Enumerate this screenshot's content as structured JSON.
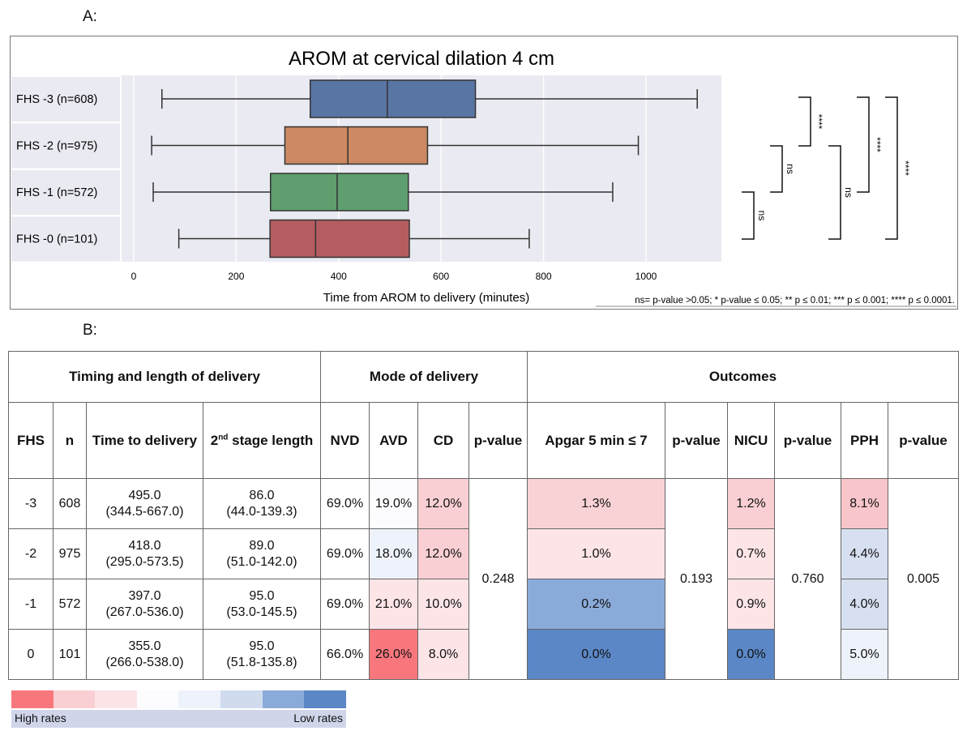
{
  "panel_a_label": "A:",
  "panel_b_label": "B:",
  "chart_data": {
    "type": "boxplot",
    "title": "AROM at cervical dilation 4 cm",
    "xlabel": "Time from AROM to delivery (minutes)",
    "xlim": [
      -10,
      1110
    ],
    "xticks": [
      "0",
      "200",
      "400",
      "600",
      "800",
      "1000"
    ],
    "grid": true,
    "categories": [
      "FHS -3 (n=608)",
      "FHS -2 (n=975)",
      "FHS -1 (n=572)",
      "FHS -0 (n=101)"
    ],
    "colors": [
      "#5975a4",
      "#cc8963",
      "#5f9e6e",
      "#b55d60"
    ],
    "boxes": [
      {
        "whislo": 55,
        "q1": 344.5,
        "med": 495,
        "q3": 667,
        "whishi": 1100
      },
      {
        "whislo": 35,
        "q1": 295,
        "med": 418,
        "q3": 573.5,
        "whishi": 985
      },
      {
        "whislo": 38,
        "q1": 267,
        "med": 397,
        "q3": 536,
        "whishi": 935
      },
      {
        "whislo": 88,
        "q1": 266,
        "med": 355,
        "q3": 538,
        "whishi": 772
      }
    ],
    "significance": [
      {
        "pair": [
          3,
          2
        ],
        "label": "ns"
      },
      {
        "pair": [
          2,
          1
        ],
        "label": "ns"
      },
      {
        "pair": [
          1,
          0
        ],
        "label": "****"
      },
      {
        "pair": [
          3,
          1
        ],
        "label": "ns"
      },
      {
        "pair": [
          2,
          0
        ],
        "label": "****"
      },
      {
        "pair": [
          3,
          0
        ],
        "label": "****"
      }
    ],
    "footnote": "ns= p-value >0.05; * p-value ≤ 0.05; ** p ≤ 0.01; *** p ≤ 0.001; **** p ≤ 0.0001."
  },
  "table": {
    "groups": [
      "Timing and length of delivery",
      "Mode of delivery",
      "Outcomes"
    ],
    "headers": {
      "fhs": "FHS",
      "n": "n",
      "time": "Time to delivery",
      "stage_sup": "nd",
      "stage_pre": "2",
      "stage": " stage length",
      "nvd": "NVD",
      "avd": "AVD",
      "cd": "CD",
      "p": "p-value",
      "apgar": "Apgar 5 min ≤ 7",
      "nicu": "NICU",
      "pph": "PPH"
    },
    "rows": [
      {
        "fhs": "-3",
        "n": "608",
        "time": "495.0",
        "time_iqr": "(344.5-667.0)",
        "stage": "86.0",
        "stage_iqr": "(44.0-139.3)",
        "nvd": "69.0%",
        "avd": "19.0%",
        "cd": "12.0%",
        "apgar": "1.3%",
        "nicu": "1.2%",
        "pph": "8.1%"
      },
      {
        "fhs": "-2",
        "n": "975",
        "time": "418.0",
        "time_iqr": "(295.0-573.5)",
        "stage": "89.0",
        "stage_iqr": "(51.0-142.0)",
        "nvd": "69.0%",
        "avd": "18.0%",
        "cd": "12.0%",
        "apgar": "1.0%",
        "nicu": "0.7%",
        "pph": "4.4%"
      },
      {
        "fhs": "-1",
        "n": "572",
        "time": "397.0",
        "time_iqr": "(267.0-536.0)",
        "stage": "95.0",
        "stage_iqr": "(53.0-145.5)",
        "nvd": "69.0%",
        "avd": "21.0%",
        "cd": "10.0%",
        "apgar": "0.2%",
        "nicu": "0.9%",
        "pph": "4.0%"
      },
      {
        "fhs": "0",
        "n": "101",
        "time": "355.0",
        "time_iqr": "(266.0-538.0)",
        "stage": "95.0",
        "stage_iqr": "(51.8-135.8)",
        "nvd": "66.0%",
        "avd": "26.0%",
        "cd": "8.0%",
        "apgar": "0.0%",
        "nicu": "0.0%",
        "pph": "5.0%"
      }
    ],
    "pvalues": {
      "mode": "0.248",
      "apgar": "0.193",
      "nicu": "0.760",
      "pph": "0.005"
    },
    "cell_colors": [
      {
        "avd": "#fcfcff",
        "cd": "#f9cfd3",
        "apgar": "#f9d2d6",
        "nicu": "#f9cfd3",
        "pph": "#f8c5ca"
      },
      {
        "avd": "#eef2fa",
        "cd": "#f9cfd3",
        "apgar": "#fce4e7",
        "nicu": "#fce4e7",
        "pph": "#d6e0f0"
      },
      {
        "avd": "#fce4e7",
        "cd": "#fce4e7",
        "apgar": "#8aaad9",
        "nicu": "#fce4e7",
        "pph": "#d6e0f0"
      },
      {
        "avd": "#f8777d",
        "cd": "#fce4e7",
        "apgar": "#5b87c6",
        "nicu": "#5b87c6",
        "pph": "#eef2fa"
      }
    ]
  },
  "legend": {
    "colors": [
      "#f8777d",
      "#f9cfd3",
      "#fce4e7",
      "#fcfcff",
      "#eef2fa",
      "#d0dcee",
      "#8aaad9",
      "#5b87c6"
    ],
    "high": "High rates",
    "low": "Low rates"
  }
}
